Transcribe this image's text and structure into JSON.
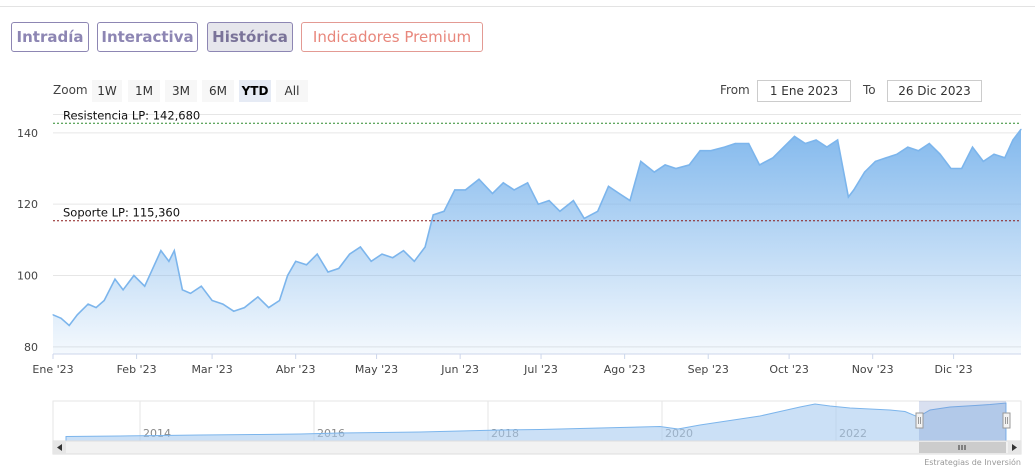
{
  "tabs": [
    {
      "label": "Intradía",
      "state": "normal"
    },
    {
      "label": "Interactiva",
      "state": "normal"
    },
    {
      "label": "Histórica",
      "state": "active"
    },
    {
      "label": "Indicadores Premium",
      "state": "premium"
    }
  ],
  "zoom": {
    "label": "Zoom",
    "buttons": [
      "1W",
      "1M",
      "3M",
      "6M",
      "YTD",
      "All"
    ],
    "selected": "YTD"
  },
  "range": {
    "from_label": "From",
    "from_value": "1 Ene 2023",
    "to_label": "To",
    "to_value": "26 Dic 2023"
  },
  "credit": "Estrategias de Inversión",
  "colors": {
    "tab_accent": "#8d86b3",
    "premium_accent": "#e8877c",
    "series_line": "#7cb5ec",
    "resistance_line": "#2e8b2e",
    "support_line": "#8b1a1a"
  },
  "chart_data": {
    "type": "area",
    "title": "",
    "xlabel": "",
    "ylabel": "",
    "ylim": [
      78,
      145
    ],
    "y_ticks": [
      80,
      100,
      120,
      140
    ],
    "x_ticks": [
      "Ene '23",
      "Feb '23",
      "Mar '23",
      "Abr '23",
      "May '23",
      "Jun '23",
      "Jul '23",
      "Ago '23",
      "Sep '23",
      "Oct '23",
      "Nov '23",
      "Dic '23"
    ],
    "grid": true,
    "plot_lines": [
      {
        "label": "Resistencia LP: 142,680",
        "value": 142.68
      },
      {
        "label": "Soporte LP: 115,360",
        "value": 115.36
      }
    ],
    "series": [
      {
        "x": [
          "2023-01-01",
          "2023-01-04",
          "2023-01-07",
          "2023-01-10",
          "2023-01-14",
          "2023-01-17",
          "2023-01-20",
          "2023-01-24",
          "2023-01-27",
          "2023-01-31",
          "2023-02-04",
          "2023-02-07",
          "2023-02-10",
          "2023-02-13",
          "2023-02-15",
          "2023-02-18",
          "2023-02-21",
          "2023-02-25",
          "2023-03-01",
          "2023-03-05",
          "2023-03-09",
          "2023-03-13",
          "2023-03-18",
          "2023-03-22",
          "2023-03-26",
          "2023-03-29",
          "2023-04-01",
          "2023-04-05",
          "2023-04-09",
          "2023-04-13",
          "2023-04-17",
          "2023-04-21",
          "2023-04-25",
          "2023-04-29",
          "2023-05-03",
          "2023-05-07",
          "2023-05-11",
          "2023-05-15",
          "2023-05-19",
          "2023-05-22",
          "2023-05-26",
          "2023-05-30",
          "2023-06-03",
          "2023-06-08",
          "2023-06-13",
          "2023-06-17",
          "2023-06-21",
          "2023-06-26",
          "2023-06-30",
          "2023-07-04",
          "2023-07-08",
          "2023-07-13",
          "2023-07-17",
          "2023-07-22",
          "2023-07-26",
          "2023-07-30",
          "2023-08-03",
          "2023-08-07",
          "2023-08-12",
          "2023-08-16",
          "2023-08-20",
          "2023-08-25",
          "2023-08-29",
          "2023-09-02",
          "2023-09-07",
          "2023-09-11",
          "2023-09-16",
          "2023-09-20",
          "2023-09-25",
          "2023-09-29",
          "2023-10-03",
          "2023-10-07",
          "2023-10-11",
          "2023-10-15",
          "2023-10-19",
          "2023-10-23",
          "2023-10-25",
          "2023-10-29",
          "2023-11-02",
          "2023-11-06",
          "2023-11-10",
          "2023-11-14",
          "2023-11-18",
          "2023-11-22",
          "2023-11-26",
          "2023-11-30",
          "2023-12-04",
          "2023-12-08",
          "2023-12-12",
          "2023-12-16",
          "2023-12-20",
          "2023-12-23",
          "2023-12-26"
        ],
        "values": [
          89,
          88,
          86,
          89,
          92,
          91,
          93,
          99,
          96,
          100,
          97,
          102,
          107,
          104,
          107,
          96,
          95,
          97,
          93,
          92,
          90,
          91,
          94,
          91,
          93,
          100,
          104,
          103,
          106,
          101,
          102,
          106,
          108,
          104,
          106,
          105,
          107,
          104,
          108,
          117,
          118,
          124,
          124,
          127,
          123,
          126,
          124,
          126,
          120,
          121,
          118,
          121,
          116,
          118,
          125,
          123,
          121,
          132,
          129,
          131,
          130,
          131,
          135,
          135,
          136,
          137,
          137,
          131,
          133,
          136,
          139,
          137,
          138,
          136,
          138,
          122,
          124,
          129,
          132,
          133,
          134,
          136,
          135,
          137,
          134,
          130,
          130,
          136,
          132,
          134,
          133,
          138,
          141
        ]
      }
    ]
  },
  "navigator": {
    "year_labels": [
      "2014",
      "2016",
      "2018",
      "2020",
      "2022"
    ]
  }
}
